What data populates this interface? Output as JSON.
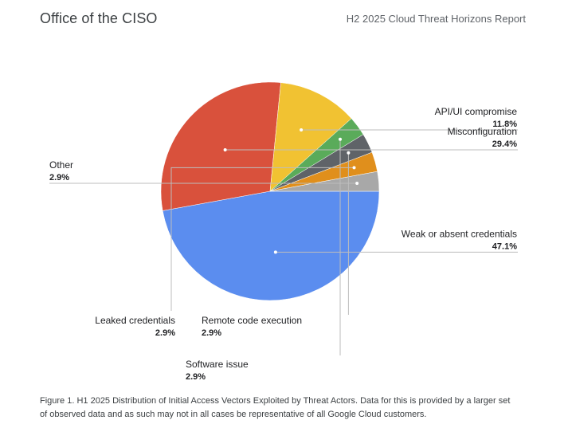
{
  "header": {
    "brand": "Office of the CISO",
    "report": "H2 2025 Cloud Threat Horizons Report"
  },
  "chart_data": {
    "type": "pie",
    "title": "",
    "slices": [
      {
        "label": "Weak or absent credentials",
        "value": 47.1,
        "value_label": "47.1%",
        "color": "#5b8def"
      },
      {
        "label": "Misconfiguration",
        "value": 29.4,
        "value_label": "29.4%",
        "color": "#d9513c"
      },
      {
        "label": "API/UI compromise",
        "value": 11.8,
        "value_label": "11.8%",
        "color": "#f1c232"
      },
      {
        "label": "Software issue",
        "value": 2.9,
        "value_label": "2.9%",
        "color": "#5aab5a"
      },
      {
        "label": "Remote code execution",
        "value": 2.9,
        "value_label": "2.9%",
        "color": "#5f6368"
      },
      {
        "label": "Leaked credentials",
        "value": 2.9,
        "value_label": "2.9%",
        "color": "#e08f1c"
      },
      {
        "label": "Other",
        "value": 2.9,
        "value_label": "2.9%",
        "color": "#a8a8a8"
      }
    ],
    "start": "3 o'clock",
    "direction": "clockwise"
  },
  "caption": "Figure 1. H1 2025 Distribution of Initial Access Vectors Exploited by Threat Actors. Data for this is provided by a larger set of observed data and as such may not in all cases be representative of all Google Cloud customers."
}
